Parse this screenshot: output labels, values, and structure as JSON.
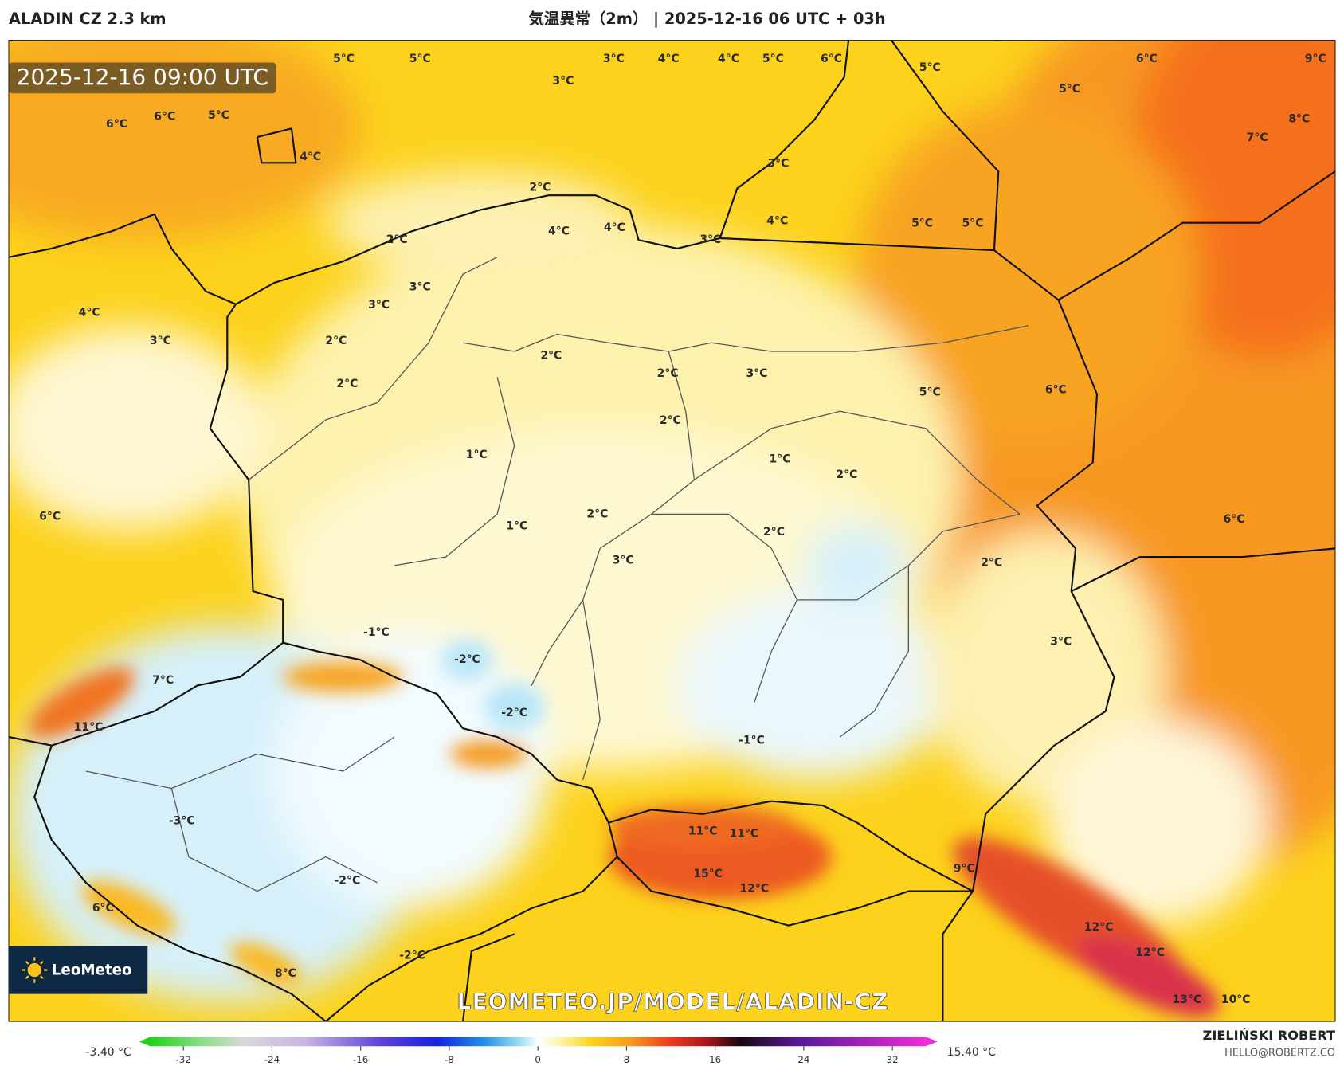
{
  "header": {
    "model": "ALADIN CZ 2.3 km",
    "title": "気温異常（2m） | 2025-12-16 06 UTC + 03h"
  },
  "valid_time": "2025-12-16 09:00 UTC",
  "logo": "LeoMeteo",
  "watermark": "LEOMETEO.JP/MODEL/ALADIN-CZ",
  "colorbar": {
    "min_label": "-3.40 °C",
    "max_label": "15.40 °C",
    "lim": [
      -35,
      35
    ],
    "ticks": [
      -32,
      -24,
      -16,
      -8,
      0,
      8,
      16,
      24,
      32
    ]
  },
  "author": {
    "name": "ZIELIŃSKI ROBERT",
    "email": "HELLO@ROBERTZ.CO"
  },
  "map_labels": [
    "5°C",
    "5°C",
    "3°C",
    "4°C",
    "4°C",
    "5°C",
    "6°C",
    "5°C",
    "6°C",
    "9°C",
    "6°C",
    "6°C",
    "5°C",
    "4°C",
    "5°C",
    "8°C",
    "7°C",
    "3°C",
    "2°C",
    "3°C",
    "2°C",
    "4°C",
    "4°C",
    "3°C",
    "4°C",
    "5°C",
    "5°C",
    "4°C",
    "3°C",
    "3°C",
    "3°C",
    "2°C",
    "2°C",
    "2°C",
    "3°C",
    "2°C",
    "5°C",
    "6°C",
    "2°C",
    "1°C",
    "1°C",
    "2°C",
    "6°C",
    "1°C",
    "2°C",
    "2°C",
    "2°C",
    "3°C",
    "-1°C",
    "-2°C",
    "7°C",
    "11°C",
    "-2°C",
    "-1°C",
    "11°C",
    "11°C",
    "15°C",
    "12°C",
    "9°C",
    "12°C",
    "12°C",
    "13°C",
    "10°C",
    "-3°C",
    "-2°C",
    "8°C",
    "6°C",
    "-2°C",
    "3°C",
    "6°C"
  ]
}
